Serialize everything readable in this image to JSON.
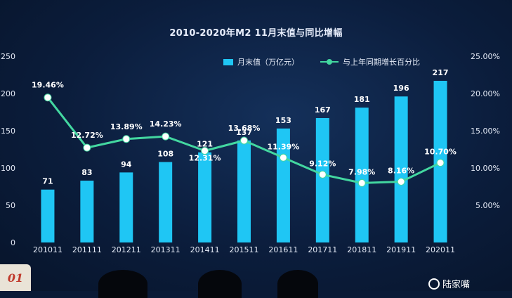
{
  "chart_data": {
    "type": "bar",
    "title": "2010-2020年M2  11月末值与同比增幅",
    "categories": [
      "201011",
      "201111",
      "201211",
      "201311",
      "201411",
      "201511",
      "201611",
      "201711",
      "201811",
      "201911",
      "202011"
    ],
    "series": [
      {
        "name": "月末值（万亿元）",
        "type": "bar",
        "axis": "left",
        "values": [
          71,
          83,
          94,
          108,
          121,
          137,
          153,
          167,
          181,
          196,
          217
        ],
        "color": "#1fc6f4"
      },
      {
        "name": "与上年同期增长百分比",
        "type": "line",
        "axis": "right",
        "values": [
          19.46,
          12.72,
          13.89,
          14.23,
          12.31,
          13.68,
          11.39,
          9.12,
          7.98,
          8.16,
          10.7
        ],
        "labels": [
          "19.46%",
          "12.72%",
          "13.89%",
          "14.23%",
          "12.31%",
          "13.68%",
          "11.39%",
          "9.12%",
          "7.98%",
          "8.16%",
          "10.70%"
        ],
        "color": "#43d7a0"
      }
    ],
    "y_left": {
      "ylim": [
        0,
        250
      ],
      "ticks": [
        "0",
        "50",
        "100",
        "150",
        "200",
        "250"
      ]
    },
    "y_right": {
      "ylim": [
        0,
        25
      ],
      "ticks": [
        "5.00%",
        "10.00%",
        "15.00%",
        "20.00%",
        "25.00%"
      ]
    },
    "legend_position": "top-right",
    "grid": false
  },
  "footer": {
    "badge": "01",
    "watermark": "陆家嘴"
  }
}
